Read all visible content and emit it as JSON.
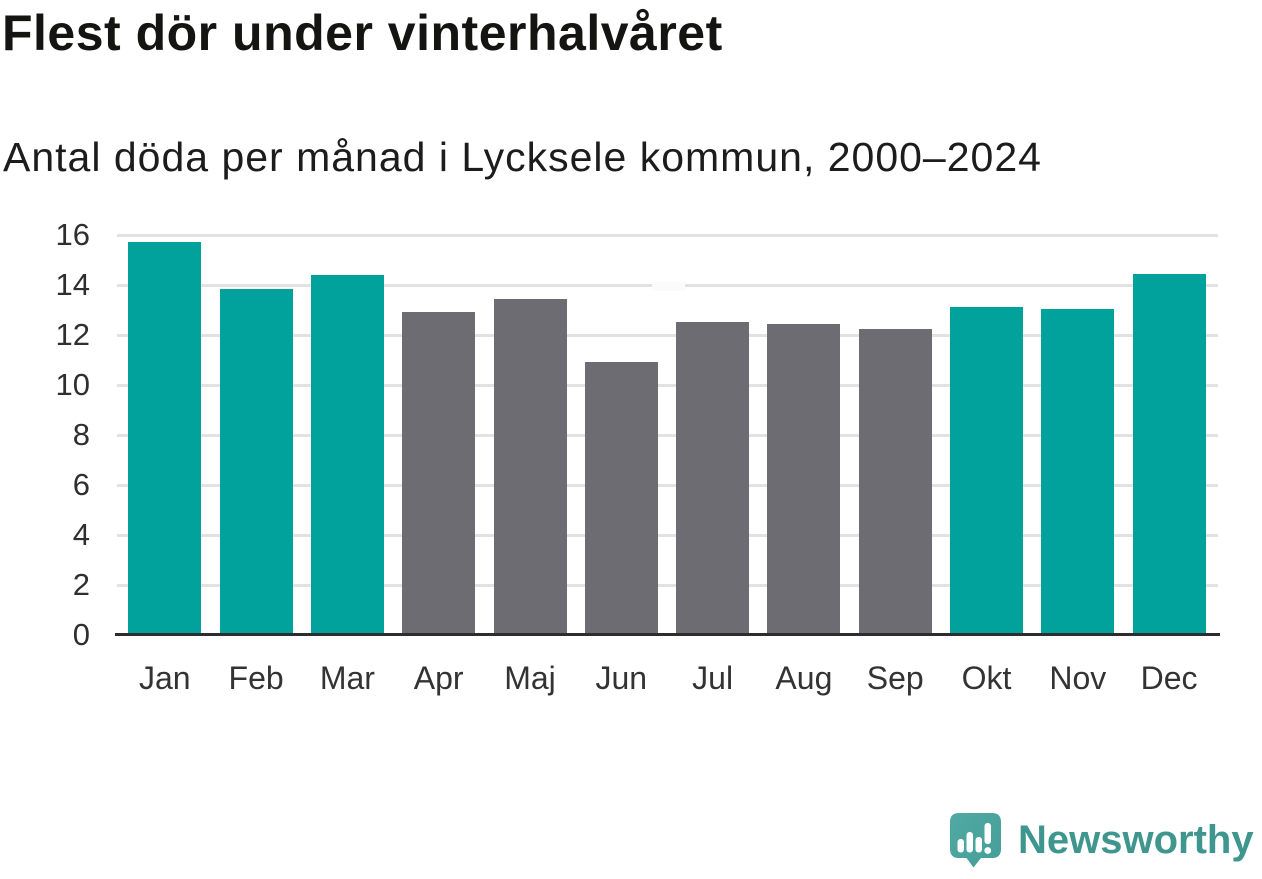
{
  "header": {
    "title": "Flest dör under vinterhalvåret",
    "subtitle": "Antal döda per månad i Lycksele kommun, 2000–2024"
  },
  "chart_data": {
    "type": "bar",
    "title": "Flest dör under vinterhalvåret",
    "subtitle": "Antal döda per månad i Lycksele kommun, 2000–2024",
    "categories": [
      "Jan",
      "Feb",
      "Mar",
      "Apr",
      "Maj",
      "Jun",
      "Jul",
      "Aug",
      "Sep",
      "Okt",
      "Nov",
      "Dec"
    ],
    "values": [
      15.7,
      13.8,
      14.35,
      12.9,
      13.4,
      10.9,
      12.5,
      12.4,
      12.2,
      13.1,
      13.0,
      14.4
    ],
    "bar_groups": [
      "winter",
      "winter",
      "winter",
      "summer",
      "summer",
      "summer",
      "summer",
      "summer",
      "summer",
      "winter",
      "winter",
      "winter"
    ],
    "group_colors": {
      "winter": "#00a29b",
      "summer": "#6d6c72"
    },
    "xlabel": "",
    "ylabel": "",
    "ylim": [
      0,
      16
    ],
    "yticks": [
      0,
      2,
      4,
      6,
      8,
      10,
      12,
      14,
      16
    ],
    "grid": "horizontal",
    "legend": "none",
    "background": "#ffffff",
    "gridline_color": "#e2e2e2",
    "axis_color": "#2d2d2d"
  },
  "branding": {
    "logo_text": "Newsworthy",
    "logo_icon": "newsworthy-bubble-bar-chart-icon",
    "logo_text_color": "#3f968e",
    "logo_bubble_color_top": "#50a9a2",
    "logo_bubble_color_bottom": "#459e97"
  }
}
